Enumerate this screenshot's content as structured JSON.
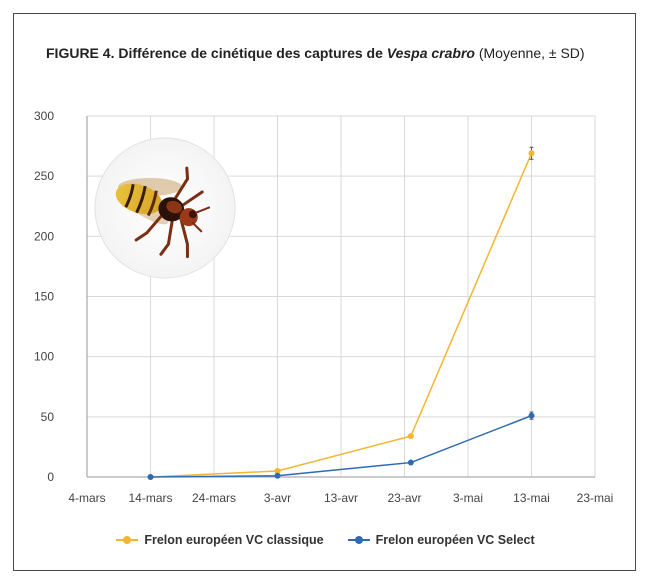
{
  "title": {
    "prefix": "FIGURE 4. Différence de cinétique des captures de ",
    "species": "Vespa crabro",
    "suffix": " (Moyenne, ± SD)"
  },
  "colors": {
    "series1": "#f2b731",
    "series2": "#2e6bb4",
    "grid": "#d9d9d9",
    "axis": "#9a9a9a"
  },
  "chart_data": {
    "type": "line",
    "title": "FIGURE 4. Différence de cinétique des captures de Vespa crabro (Moyenne, ± SD)",
    "x_tick_labels": [
      "4-mars",
      "14-mars",
      "24-mars",
      "3-avr",
      "13-avr",
      "23-avr",
      "3-mai",
      "13-mai",
      "23-mai"
    ],
    "x_tick_days": [
      0,
      10,
      20,
      30,
      40,
      50,
      60,
      70,
      80
    ],
    "xlim": [
      0,
      80
    ],
    "ylim": [
      0,
      300
    ],
    "y_ticks": [
      0,
      50,
      100,
      150,
      200,
      250,
      300
    ],
    "grid": true,
    "legend_position": "bottom",
    "series": [
      {
        "name": "Frelon européen VC classique",
        "x_days": [
          10,
          30,
          51,
          70
        ],
        "values": [
          0,
          5,
          34,
          269
        ],
        "sd": [
          0,
          0,
          0,
          5
        ]
      },
      {
        "name": "Frelon européen VC Select",
        "x_days": [
          10,
          30,
          51,
          70
        ],
        "values": [
          0,
          1,
          12,
          51
        ],
        "sd": [
          0,
          0,
          0,
          3
        ]
      }
    ]
  }
}
